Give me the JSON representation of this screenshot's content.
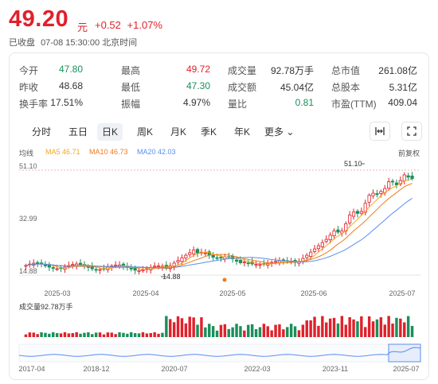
{
  "quote": {
    "price": "49.20",
    "unit": "元",
    "change": "+0.52",
    "change_pct": "+1.07%",
    "status": "已收盘",
    "datetime": "07-08 15:30:00 北京时间"
  },
  "stats": [
    [
      {
        "label": "今开",
        "value": "47.80",
        "tone": "down"
      },
      {
        "label": "最高",
        "value": "49.72",
        "tone": "up"
      },
      {
        "label": "成交量",
        "value": "92.78万手",
        "tone": ""
      },
      {
        "label": "总市值",
        "value": "261.08亿",
        "tone": ""
      }
    ],
    [
      {
        "label": "昨收",
        "value": "48.68",
        "tone": ""
      },
      {
        "label": "最低",
        "value": "47.30",
        "tone": "down"
      },
      {
        "label": "成交额",
        "value": "45.04亿",
        "tone": ""
      },
      {
        "label": "总股本",
        "value": "5.31亿",
        "tone": ""
      }
    ],
    [
      {
        "label": "换手率",
        "value": "17.51%",
        "tone": ""
      },
      {
        "label": "振幅",
        "value": "4.97%",
        "tone": ""
      },
      {
        "label": "量比",
        "value": "0.81",
        "tone": "down"
      },
      {
        "label": "市盈(TTM)",
        "value": "409.04",
        "tone": ""
      }
    ]
  ],
  "tabs": [
    "分时",
    "五日",
    "日K",
    "周K",
    "月K",
    "季K",
    "年K",
    "更多"
  ],
  "active_tab": "日K",
  "tools": {
    "compare_icon": "expand-horizontal-icon",
    "fullscreen_icon": "fullscreen-icon"
  },
  "legend": {
    "title": "均线",
    "ma5": "MA5 46.71",
    "ma10": "MA10 46.73",
    "ma20": "MA20 42.03",
    "adjust": "前复权"
  },
  "colors": {
    "up": "#e0212b",
    "down": "#1a8f5b",
    "ma5": "#f5a623",
    "ma10": "#f07a1c",
    "ma20": "#5b8def"
  },
  "chart_data": {
    "type": "candlestick",
    "y_ticks": [
      "51.10",
      "32.99",
      "14.88"
    ],
    "x_ticks": [
      "2025-03",
      "2025-04",
      "2025-05",
      "2025-06",
      "2025-07"
    ],
    "ylim": [
      14.88,
      51.1
    ],
    "annotations": {
      "high": "51.10",
      "low": "14.88"
    },
    "volume_label": "成交量92.78万手",
    "overview_ticks": [
      "2017-04",
      "2018-12",
      "2020-07",
      "2022-03",
      "2023-11",
      "2025-07"
    ]
  }
}
